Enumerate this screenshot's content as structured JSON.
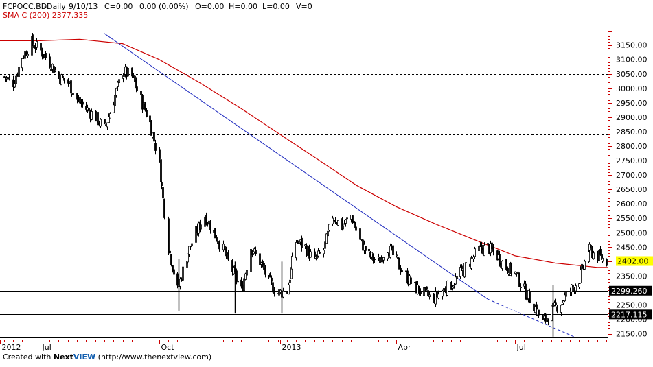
{
  "header": {
    "symbol": "FCPOCC.BD",
    "interval": "-Daily",
    "date": "9/10/13",
    "close": "C=0.00",
    "change": "0.00 (0.00%)",
    "open": "O=0.00",
    "high": "H=0.00",
    "low": "L=0.00",
    "volume": "V=0",
    "sma_label": "SMA C (200) 2377.335"
  },
  "footer": {
    "created_with": "Created with",
    "brand_next": "Next",
    "brand_view": "VIEW",
    "url": "(http://www.thenextview.com)"
  },
  "colors": {
    "candle": "#000000",
    "sma": "#cc0000",
    "trendline": "#1f2bbf",
    "axis": "#cc0000",
    "highlight_bg": "#ffff00",
    "label_bg": "#000000"
  },
  "chart_data": {
    "type": "candlestick",
    "ylim": [
      2130,
      3230
    ],
    "y_ticks": [
      "3150.00",
      "3100.00",
      "3050.00",
      "3000.00",
      "2950.00",
      "2900.00",
      "2850.00",
      "2800.00",
      "2750.00",
      "2700.00",
      "2650.00",
      "2600.00",
      "2550.00",
      "2500.00",
      "2450.00",
      "2400.00",
      "2350.00",
      "2300.00",
      "2250.00",
      "2200.00",
      "2150.00"
    ],
    "x_ticks": [
      "2012",
      "Jul",
      "Oct",
      "2013",
      "Apr",
      "Jul"
    ],
    "x_tick_dates": [
      "2012-06-01",
      "2012-07-02",
      "2012-10-01",
      "2013-01-02",
      "2013-04-01",
      "2013-07-01"
    ],
    "x_range": [
      "2012-06-01",
      "2013-09-10"
    ],
    "price_series": [
      [
        "2012-06-04",
        3040
      ],
      [
        "2012-06-11",
        3020
      ],
      [
        "2012-06-18",
        3110
      ],
      [
        "2012-06-25",
        3160
      ],
      [
        "2012-07-02",
        3130
      ],
      [
        "2012-07-09",
        3090
      ],
      [
        "2012-07-16",
        3040
      ],
      [
        "2012-07-23",
        3020
      ],
      [
        "2012-07-30",
        2960
      ],
      [
        "2012-08-06",
        2930
      ],
      [
        "2012-08-13",
        2900
      ],
      [
        "2012-08-20",
        2860
      ],
      [
        "2012-08-27",
        2960
      ],
      [
        "2012-09-03",
        3060
      ],
      [
        "2012-09-10",
        3040
      ],
      [
        "2012-09-17",
        2960
      ],
      [
        "2012-09-24",
        2880
      ],
      [
        "2012-10-01",
        2740
      ],
      [
        "2012-10-08",
        2450
      ],
      [
        "2012-10-15",
        2300
      ],
      [
        "2012-10-22",
        2420
      ],
      [
        "2012-10-29",
        2500
      ],
      [
        "2012-11-05",
        2560
      ],
      [
        "2012-11-12",
        2500
      ],
      [
        "2012-11-19",
        2440
      ],
      [
        "2012-11-26",
        2370
      ],
      [
        "2012-12-03",
        2300
      ],
      [
        "2012-12-10",
        2450
      ],
      [
        "2012-12-17",
        2400
      ],
      [
        "2012-12-24",
        2330
      ],
      [
        "2012-12-31",
        2290
      ],
      [
        "2013-01-07",
        2300
      ],
      [
        "2013-01-14",
        2470
      ],
      [
        "2013-01-21",
        2450
      ],
      [
        "2013-01-28",
        2400
      ],
      [
        "2013-02-04",
        2440
      ],
      [
        "2013-02-11",
        2560
      ],
      [
        "2013-02-18",
        2520
      ],
      [
        "2013-02-25",
        2560
      ],
      [
        "2013-03-04",
        2470
      ],
      [
        "2013-03-11",
        2420
      ],
      [
        "2013-03-18",
        2400
      ],
      [
        "2013-03-25",
        2450
      ],
      [
        "2013-04-01",
        2400
      ],
      [
        "2013-04-08",
        2350
      ],
      [
        "2013-04-15",
        2310
      ],
      [
        "2013-04-22",
        2290
      ],
      [
        "2013-04-29",
        2270
      ],
      [
        "2013-05-06",
        2300
      ],
      [
        "2013-05-13",
        2320
      ],
      [
        "2013-05-20",
        2360
      ],
      [
        "2013-05-27",
        2400
      ],
      [
        "2013-06-03",
        2440
      ],
      [
        "2013-06-10",
        2450
      ],
      [
        "2013-06-17",
        2420
      ],
      [
        "2013-06-24",
        2380
      ],
      [
        "2013-07-01",
        2360
      ],
      [
        "2013-07-08",
        2300
      ],
      [
        "2013-07-15",
        2250
      ],
      [
        "2013-07-22",
        2190
      ],
      [
        "2013-07-29",
        2230
      ],
      [
        "2013-08-05",
        2260
      ],
      [
        "2013-08-12",
        2300
      ],
      [
        "2013-08-19",
        2340
      ],
      [
        "2013-08-26",
        2440
      ],
      [
        "2013-09-02",
        2420
      ],
      [
        "2013-09-09",
        2402
      ]
    ],
    "spike_lows": [
      [
        "2012-10-16",
        2230
      ],
      [
        "2012-11-28",
        2220
      ],
      [
        "2013-01-03",
        2220
      ],
      [
        "2013-07-30",
        2140
      ]
    ],
    "sma_series": [
      [
        "2012-06-01",
        3165
      ],
      [
        "2012-07-02",
        3165
      ],
      [
        "2012-08-01",
        3170
      ],
      [
        "2012-09-03",
        3155
      ],
      [
        "2012-10-01",
        3100
      ],
      [
        "2012-11-01",
        3020
      ],
      [
        "2012-12-03",
        2930
      ],
      [
        "2013-01-02",
        2840
      ],
      [
        "2013-02-01",
        2750
      ],
      [
        "2013-03-01",
        2665
      ],
      [
        "2013-04-01",
        2590
      ],
      [
        "2013-05-01",
        2530
      ],
      [
        "2013-06-03",
        2470
      ],
      [
        "2013-07-01",
        2420
      ],
      [
        "2013-08-01",
        2395
      ],
      [
        "2013-09-02",
        2380
      ],
      [
        "2013-09-10",
        2380
      ]
    ],
    "trendline": {
      "solid": [
        [
          "2012-08-20",
          3190
        ],
        [
          "2013-06-10",
          2270
        ]
      ],
      "dashed": [
        [
          "2013-06-10",
          2270
        ],
        [
          "2013-08-15",
          2140
        ]
      ]
    },
    "horizontal_levels": [
      {
        "value": 3050,
        "style": "dashed"
      },
      {
        "value": 2840,
        "style": "dashed"
      },
      {
        "value": 2570,
        "style": "dashed"
      },
      {
        "value": 2299.26,
        "style": "solid",
        "label": "2299.260"
      },
      {
        "value": 2217.115,
        "style": "solid",
        "label": "2217.115"
      },
      {
        "value": 2140,
        "style": "solid"
      }
    ],
    "last_price": {
      "value": 2402,
      "label": "2402.00"
    },
    "grid": false
  }
}
